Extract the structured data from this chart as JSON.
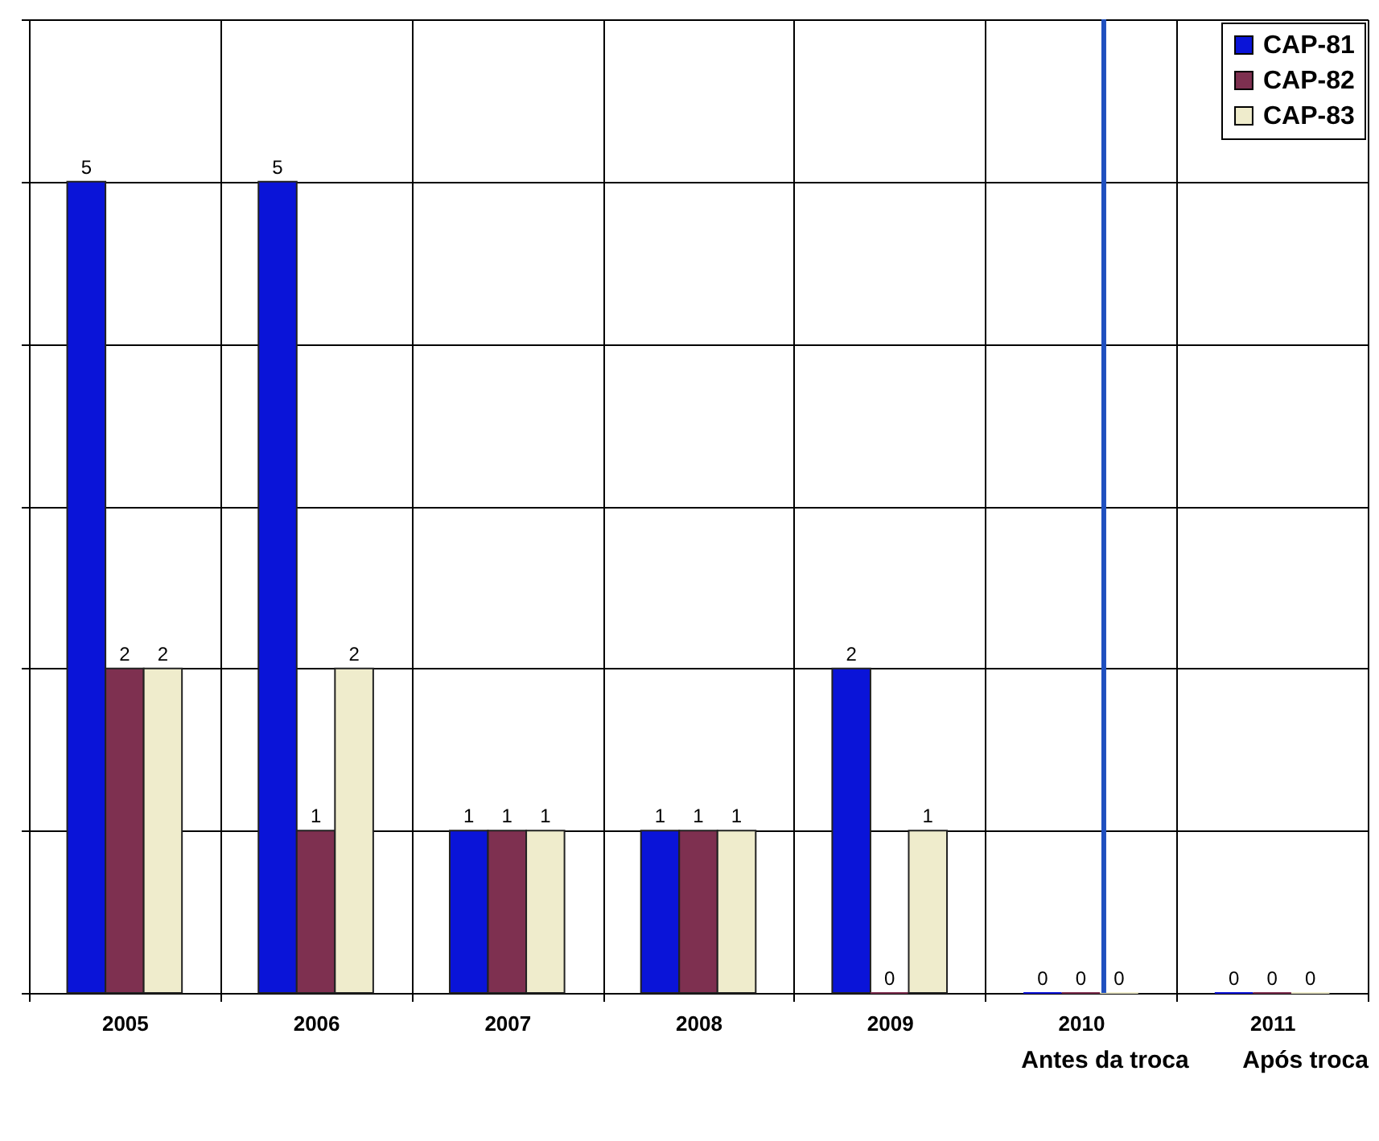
{
  "chart_data": {
    "type": "bar",
    "categories": [
      "2005",
      "2006",
      "2007",
      "2008",
      "2009",
      "2010",
      "2011"
    ],
    "series": [
      {
        "name": "CAP-81",
        "color": "#0a14d8",
        "values": [
          5,
          5,
          1,
          1,
          2,
          0,
          0
        ]
      },
      {
        "name": "CAP-82",
        "color": "#7e3050",
        "values": [
          2,
          1,
          1,
          1,
          0,
          0,
          0
        ]
      },
      {
        "name": "CAP-83",
        "color": "#efeccc",
        "values": [
          2,
          2,
          1,
          1,
          1,
          0,
          0
        ]
      }
    ],
    "ylim": [
      0,
      6
    ],
    "yticks": [
      {
        "value": 0,
        "label": null
      },
      {
        "value": 1,
        "label": null
      },
      {
        "value": 2,
        "label": null
      },
      {
        "value": 3,
        "label": null
      },
      {
        "value": 4,
        "label": null
      },
      {
        "value": 5,
        "label": null
      },
      {
        "value": 6,
        "label": null
      }
    ],
    "tick_labels": "x",
    "grid": true,
    "legend": "top right",
    "data_labels": true,
    "ref_lines": [
      {
        "axis": "x",
        "value": "2010",
        "color": "#1f4fbf"
      }
    ],
    "annotations": [
      "Antes da troca",
      "Após troca"
    ]
  }
}
